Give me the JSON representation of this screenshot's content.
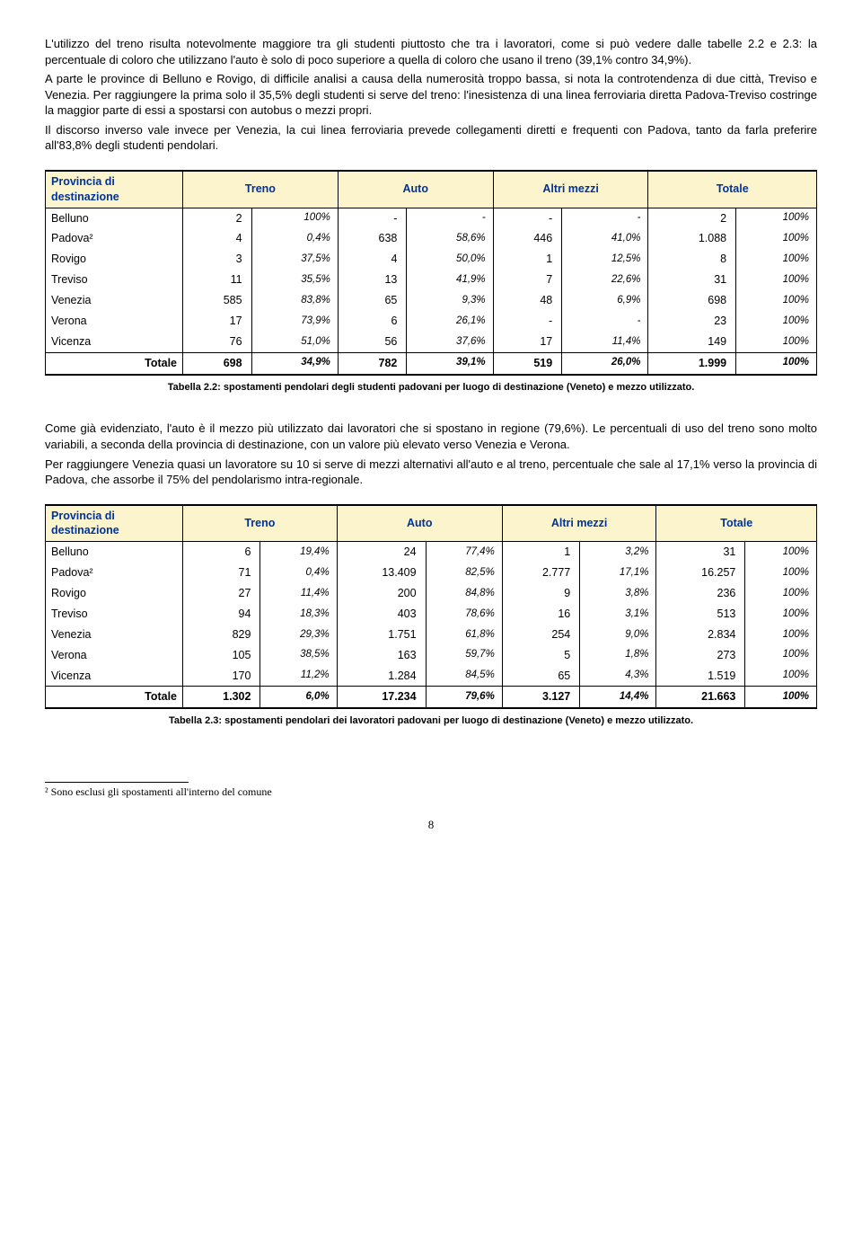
{
  "para1": "L'utilizzo del treno risulta notevolmente maggiore tra gli studenti piuttosto che tra i lavoratori, come si può vedere dalle tabelle 2.2 e 2.3: la percentuale di coloro che utilizzano l'auto è solo di poco superiore a quella di coloro che usano il treno (39,1% contro 34,9%).",
  "para2": "A parte le province di Belluno e Rovigo, di difficile analisi a causa della numerosità troppo bassa, si nota la controtendenza di due città, Treviso e Venezia. Per raggiungere la prima solo il 35,5% degli studenti si serve del treno: l'inesistenza di una linea ferroviaria diretta Padova-Treviso costringe la maggior parte di essi a spostarsi con autobus o mezzi propri.",
  "para3": "Il discorso inverso vale invece per Venezia, la cui linea ferroviaria prevede collegamenti diretti e frequenti con Padova, tanto da farla preferire all'83,8% degli studenti pendolari.",
  "para4": "Come già evidenziato, l'auto è il mezzo più utilizzato dai lavoratori che si spostano in regione (79,6%). Le percentuali di uso del treno sono molto variabili, a seconda della provincia di destinazione, con un valore più elevato verso Venezia e Verona.",
  "para5": "Per raggiungere Venezia quasi un lavoratore su 10 si serve di mezzi alternativi all'auto e al treno, percentuale che sale al 17,1% verso la provincia di Padova, che assorbe il 75% del pendolarismo intra-regionale.",
  "headers": {
    "col0": "Provincia di destinazione",
    "col1": "Treno",
    "col2": "Auto",
    "col3": "Altri mezzi",
    "col4": "Totale",
    "total": "Totale"
  },
  "table1": {
    "caption": "Tabella 2.2: spostamenti pendolari degli studenti padovani per luogo di destinazione (Veneto) e mezzo utilizzato.",
    "rows": [
      {
        "label": "Belluno",
        "v": [
          "2",
          "100%",
          "-",
          "-",
          "-",
          "-",
          "2",
          "100%"
        ]
      },
      {
        "label": "Padova²",
        "v": [
          "4",
          "0,4%",
          "638",
          "58,6%",
          "446",
          "41,0%",
          "1.088",
          "100%"
        ]
      },
      {
        "label": "Rovigo",
        "v": [
          "3",
          "37,5%",
          "4",
          "50,0%",
          "1",
          "12,5%",
          "8",
          "100%"
        ]
      },
      {
        "label": "Treviso",
        "v": [
          "11",
          "35,5%",
          "13",
          "41,9%",
          "7",
          "22,6%",
          "31",
          "100%"
        ]
      },
      {
        "label": "Venezia",
        "v": [
          "585",
          "83,8%",
          "65",
          "9,3%",
          "48",
          "6,9%",
          "698",
          "100%"
        ]
      },
      {
        "label": "Verona",
        "v": [
          "17",
          "73,9%",
          "6",
          "26,1%",
          "-",
          "-",
          "23",
          "100%"
        ]
      },
      {
        "label": "Vicenza",
        "v": [
          "76",
          "51,0%",
          "56",
          "37,6%",
          "17",
          "11,4%",
          "149",
          "100%"
        ]
      }
    ],
    "total": {
      "v": [
        "698",
        "34,9%",
        "782",
        "39,1%",
        "519",
        "26,0%",
        "1.999",
        "100%"
      ]
    }
  },
  "table2": {
    "caption": "Tabella 2.3: spostamenti pendolari dei lavoratori padovani per luogo di destinazione (Veneto) e mezzo utilizzato.",
    "rows": [
      {
        "label": "Belluno",
        "v": [
          "6",
          "19,4%",
          "24",
          "77,4%",
          "1",
          "3,2%",
          "31",
          "100%"
        ]
      },
      {
        "label": "Padova²",
        "v": [
          "71",
          "0,4%",
          "13.409",
          "82,5%",
          "2.777",
          "17,1%",
          "16.257",
          "100%"
        ]
      },
      {
        "label": "Rovigo",
        "v": [
          "27",
          "11,4%",
          "200",
          "84,8%",
          "9",
          "3,8%",
          "236",
          "100%"
        ]
      },
      {
        "label": "Treviso",
        "v": [
          "94",
          "18,3%",
          "403",
          "78,6%",
          "16",
          "3,1%",
          "513",
          "100%"
        ]
      },
      {
        "label": "Venezia",
        "v": [
          "829",
          "29,3%",
          "1.751",
          "61,8%",
          "254",
          "9,0%",
          "2.834",
          "100%"
        ]
      },
      {
        "label": "Verona",
        "v": [
          "105",
          "38,5%",
          "163",
          "59,7%",
          "5",
          "1,8%",
          "273",
          "100%"
        ]
      },
      {
        "label": "Vicenza",
        "v": [
          "170",
          "11,2%",
          "1.284",
          "84,5%",
          "65",
          "4,3%",
          "1.519",
          "100%"
        ]
      }
    ],
    "total": {
      "v": [
        "1.302",
        "6,0%",
        "17.234",
        "79,6%",
        "3.127",
        "14,4%",
        "21.663",
        "100%"
      ]
    }
  },
  "footnote": "² Sono esclusi gli spostamenti all'interno del comune",
  "pagenum": "8",
  "style": {
    "header_bg": "#fcf4cd",
    "header_color": "#003399",
    "border_color": "#000000",
    "body_font": "Verdana",
    "footnote_font": "Times New Roman"
  }
}
